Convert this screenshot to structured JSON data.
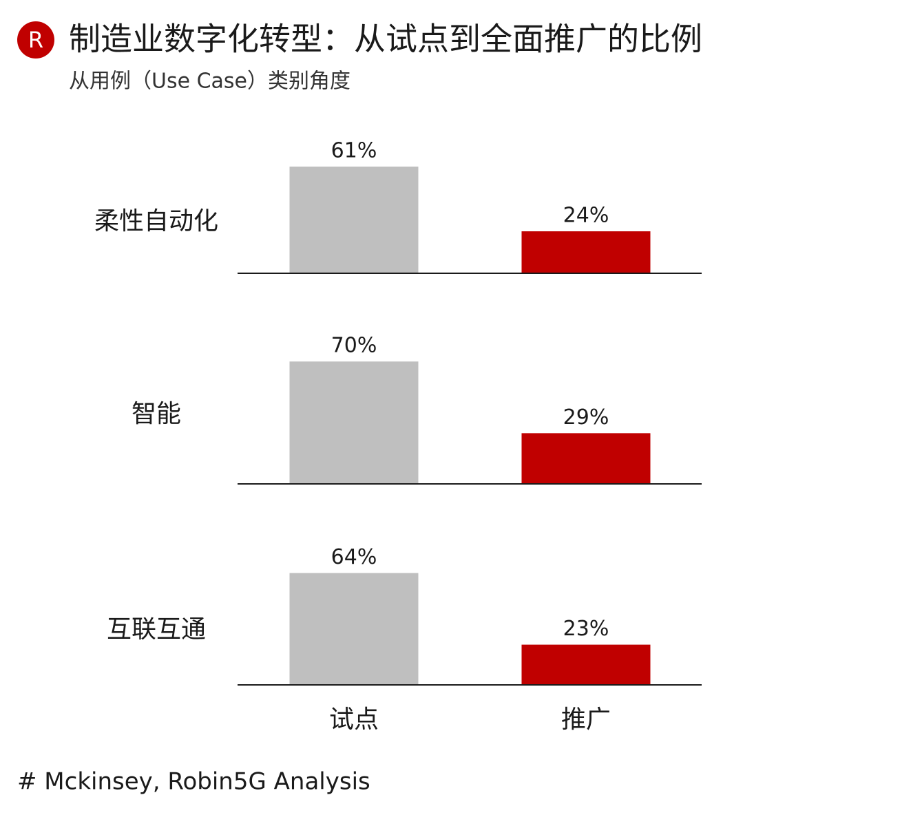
{
  "logo": "R",
  "title": "制造业数字化转型：从试点到全面推广的比例",
  "subtitle": "从用例（Use Case）类别角度",
  "source": "# Mckinsey, Robin5G Analysis",
  "chart_data": {
    "type": "bar",
    "categories": [
      "试点",
      "推广"
    ],
    "colors": [
      "#bfbfbf",
      "#c00000"
    ],
    "panels": [
      {
        "name": "柔性自动化",
        "values": [
          61,
          24
        ],
        "value_labels": [
          "61%",
          "24%"
        ]
      },
      {
        "name": "智能",
        "values": [
          70,
          29
        ],
        "value_labels": [
          "70%",
          "29%"
        ]
      },
      {
        "name": "互联互通",
        "values": [
          64,
          23
        ],
        "value_labels": [
          "64%",
          "23%"
        ]
      }
    ]
  }
}
